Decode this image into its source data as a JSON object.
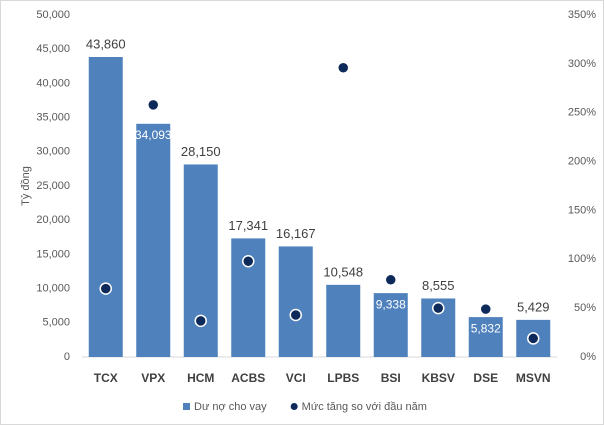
{
  "chart_data": {
    "type": "bar",
    "categories": [
      "TCX",
      "VPX",
      "HCM",
      "ACBS",
      "VCI",
      "LPBS",
      "BSI",
      "KBSV",
      "DSE",
      "MSVN"
    ],
    "series": [
      {
        "name": "Dư nợ cho vay",
        "type": "bar",
        "color": "#4f81bd",
        "values": [
          43860,
          34093,
          28150,
          17341,
          16167,
          10548,
          9338,
          8555,
          5832,
          5429
        ],
        "value_labels": [
          "43,860",
          "34,093",
          "28,150",
          "17,341",
          "16,167",
          "10,548",
          "9,338",
          "8,555",
          "5,832",
          "5,429"
        ]
      },
      {
        "name": "Mức tăng so với đầu năm",
        "type": "scatter",
        "axis": "y2",
        "color": "#0e2a5a",
        "values": [
          70,
          258,
          37,
          98,
          43,
          296,
          79,
          50,
          49,
          19
        ]
      }
    ],
    "ylabel": "Tỷ đồng",
    "ylim": [
      0,
      50000
    ],
    "yticks": [
      0,
      {
        "value": 5000,
        "label": "5,000"
      },
      {
        "value": 10000,
        "label": "10,000"
      },
      {
        "value": 15000,
        "label": "15,000"
      },
      {
        "value": 20000,
        "label": "20,000"
      },
      {
        "value": 25000,
        "label": "25,000"
      },
      {
        "value": 30000,
        "label": "30,000"
      },
      {
        "value": 35000,
        "label": "35,000"
      },
      {
        "value": 40000,
        "label": "40,000"
      },
      {
        "value": 45000,
        "label": "45,000"
      },
      {
        "value": 50000,
        "label": "50,000"
      }
    ],
    "y2lim": [
      0,
      350
    ],
    "y2ticks": [
      {
        "value": 0,
        "label": "0%"
      },
      {
        "value": 50,
        "label": "50%"
      },
      {
        "value": 100,
        "label": "100%"
      },
      {
        "value": 150,
        "label": "150%"
      },
      {
        "value": 200,
        "label": "200%"
      },
      {
        "value": 250,
        "label": "250%"
      },
      {
        "value": 300,
        "label": "300%"
      },
      {
        "value": 350,
        "label": "350%"
      }
    ],
    "grid": false,
    "legend": "bottom"
  }
}
